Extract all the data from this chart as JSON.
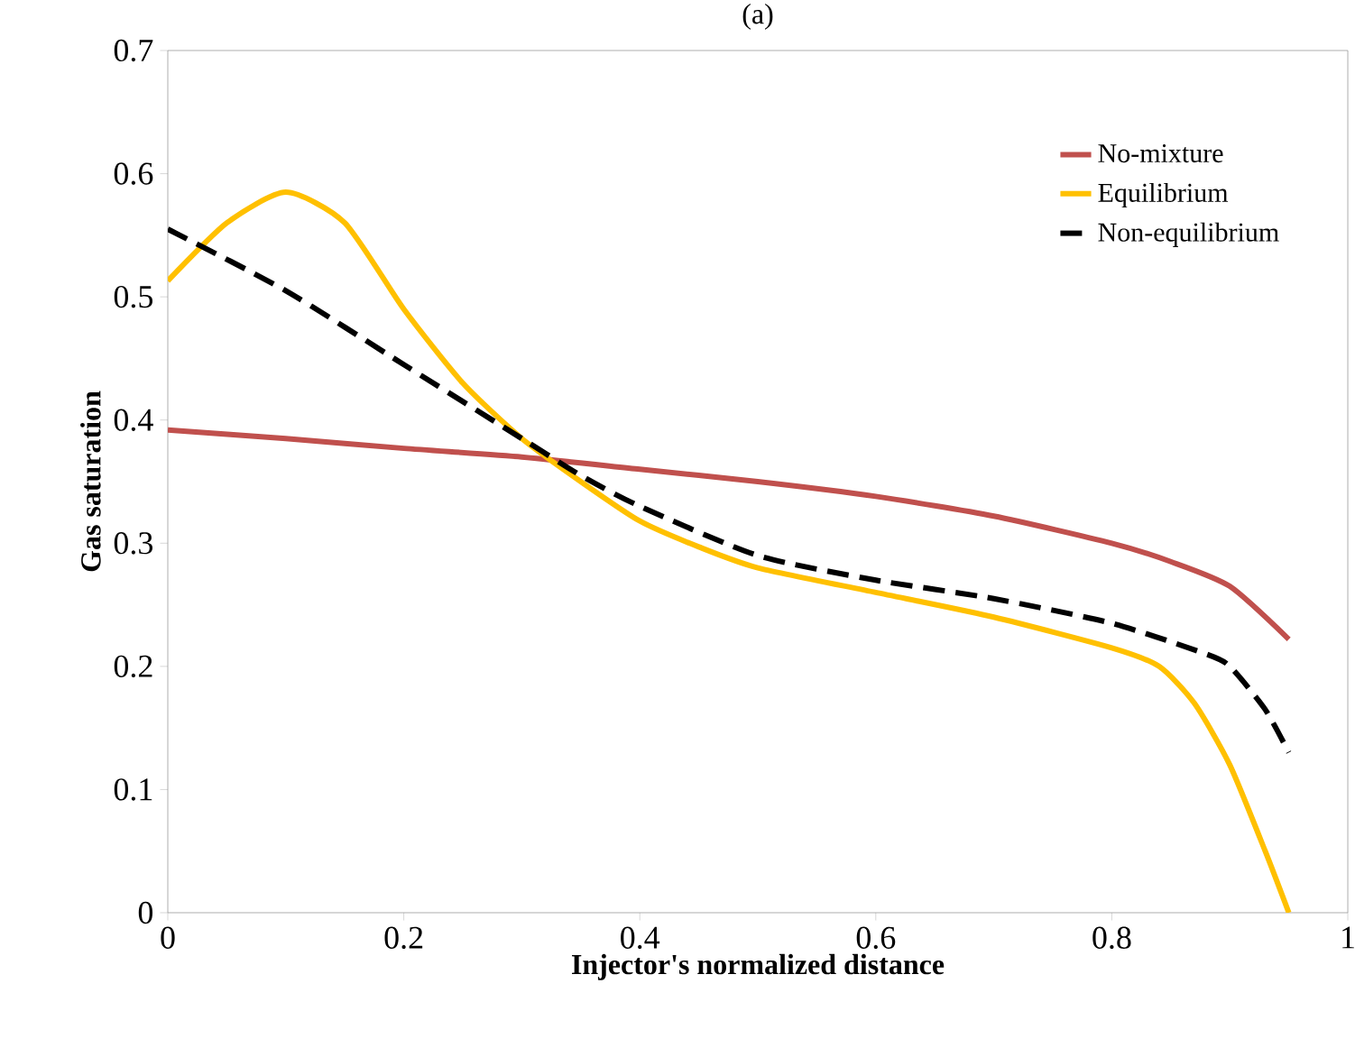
{
  "chart_data": {
    "type": "line",
    "title": "(a)",
    "xlabel": "Injector's normalized distance",
    "ylabel": "Gas saturation",
    "xlim": [
      0,
      1
    ],
    "ylim": [
      0,
      0.7
    ],
    "xticks": [
      0,
      0.2,
      0.4,
      0.6,
      0.8,
      1
    ],
    "yticks": [
      0,
      0.1,
      0.2,
      0.3,
      0.4,
      0.5,
      0.6,
      0.7
    ],
    "grid": false,
    "legend": "top right",
    "marker": "none",
    "series": [
      {
        "name": "No-mixture",
        "color": "#c0504d",
        "line_style": "solid",
        "x": [
          0,
          0.1,
          0.2,
          0.3,
          0.4,
          0.5,
          0.6,
          0.7,
          0.8,
          0.85,
          0.9,
          0.95
        ],
        "values": [
          0.392,
          0.385,
          0.377,
          0.37,
          0.36,
          0.35,
          0.338,
          0.322,
          0.3,
          0.285,
          0.265,
          0.222
        ]
      },
      {
        "name": "Equilibrium",
        "color": "#ffc000",
        "line_style": "solid",
        "x": [
          0,
          0.05,
          0.1,
          0.15,
          0.2,
          0.25,
          0.3,
          0.35,
          0.4,
          0.45,
          0.5,
          0.6,
          0.7,
          0.8,
          0.84,
          0.87,
          0.9,
          0.93,
          0.95
        ],
        "values": [
          0.513,
          0.56,
          0.585,
          0.56,
          0.49,
          0.43,
          0.385,
          0.35,
          0.318,
          0.297,
          0.28,
          0.26,
          0.24,
          0.215,
          0.2,
          0.17,
          0.12,
          0.05,
          0
        ]
      },
      {
        "name": "Non-equilibrium",
        "color": "#000000",
        "line_style": "dashed",
        "x": [
          0,
          0.1,
          0.2,
          0.3,
          0.35,
          0.4,
          0.5,
          0.6,
          0.7,
          0.8,
          0.88,
          0.9,
          0.93,
          0.95
        ],
        "values": [
          0.555,
          0.505,
          0.445,
          0.385,
          0.355,
          0.33,
          0.29,
          0.27,
          0.255,
          0.235,
          0.21,
          0.2,
          0.165,
          0.13
        ]
      }
    ]
  }
}
